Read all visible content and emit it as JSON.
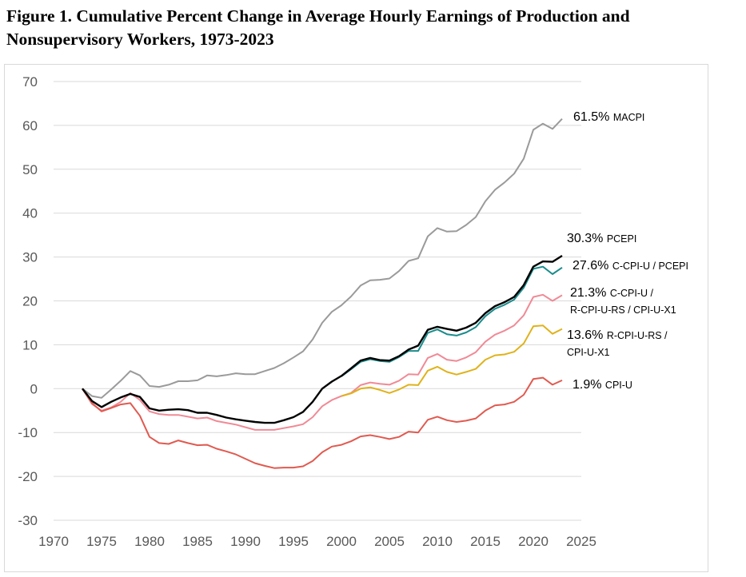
{
  "figure": {
    "title_line1": "Figure 1. Cumulative Percent Change in Average Hourly Earnings of Production and",
    "title_line2": "Nonsupervisory Workers, 1973-2023"
  },
  "chart_data": {
    "type": "line",
    "title": "Figure 1. Cumulative Percent Change in Average Hourly Earnings of Production and Nonsupervisory Workers, 1973-2023",
    "xlabel": "",
    "ylabel": "",
    "xlim": [
      1970,
      2025
    ],
    "ylim": [
      -30,
      70
    ],
    "xticks": [
      1970,
      1975,
      1980,
      1985,
      1990,
      1995,
      2000,
      2005,
      2010,
      2015,
      2020,
      2025
    ],
    "yticks": [
      -30,
      -20,
      -10,
      0,
      10,
      20,
      30,
      40,
      50,
      60,
      70
    ],
    "grid": "horizontal",
    "legend": "end-of-line labels at right",
    "series": [
      {
        "name": "MACPI",
        "color": "#9a9a9a",
        "x": [
          1973,
          1974,
          1975,
          1976,
          1977,
          1978,
          1979,
          1980,
          1981,
          1982,
          1983,
          1984,
          1985,
          1986,
          1987,
          1988,
          1989,
          1990,
          1991,
          1992,
          1993,
          1994,
          1995,
          1996,
          1997,
          1998,
          1999,
          2000,
          2001,
          2002,
          2003,
          2004,
          2005,
          2006,
          2007,
          2008,
          2009,
          2010,
          2011,
          2012,
          2013,
          2014,
          2015,
          2016,
          2017,
          2018,
          2019,
          2020,
          2021,
          2022,
          2023
        ],
        "values": [
          0,
          -1.7,
          -2.1,
          -0.2,
          1.8,
          4,
          3,
          0.6,
          0.4,
          0.9,
          1.7,
          1.7,
          1.9,
          3,
          2.8,
          3.1,
          3.5,
          3.3,
          3.3,
          4,
          4.7,
          5.8,
          7.1,
          8.5,
          11.2,
          15,
          17.5,
          19,
          21,
          23.5,
          24.7,
          24.8,
          25.1,
          26.8,
          29.1,
          29.7,
          34.7,
          36.6,
          35.8,
          35.9,
          37.3,
          39.1,
          42.7,
          45.3,
          47,
          49,
          52.4,
          59,
          60.4,
          59.2,
          61.5
        ],
        "end_value": "61.5%",
        "end_name": "MACPI"
      },
      {
        "name": "PCEPI",
        "color": "#000000",
        "x": [
          1973,
          1974,
          1975,
          1976,
          1977,
          1978,
          1979,
          1980,
          1981,
          1982,
          1983,
          1984,
          1985,
          1986,
          1987,
          1988,
          1989,
          1990,
          1991,
          1992,
          1993,
          1994,
          1995,
          1996,
          1997,
          1998,
          1999,
          2000,
          2001,
          2002,
          2003,
          2004,
          2005,
          2006,
          2007,
          2008,
          2009,
          2010,
          2011,
          2012,
          2013,
          2014,
          2015,
          2016,
          2017,
          2018,
          2019,
          2020,
          2021,
          2022,
          2023
        ],
        "values": [
          0,
          -2.8,
          -4.2,
          -3,
          -2,
          -1.2,
          -1.9,
          -4.5,
          -5,
          -4.8,
          -4.7,
          -4.9,
          -5.5,
          -5.5,
          -6,
          -6.6,
          -7,
          -7.3,
          -7.6,
          -7.8,
          -7.8,
          -7.2,
          -6.5,
          -5.3,
          -3,
          0,
          1.6,
          2.9,
          4.6,
          6.4,
          7,
          6.5,
          6.4,
          7.4,
          8.9,
          9.8,
          13.4,
          14.1,
          13.6,
          13.2,
          13.9,
          15,
          17.2,
          18.8,
          19.7,
          20.9,
          23.6,
          27.8,
          29,
          28.9,
          30.3
        ],
        "end_value": "30.3%",
        "end_name": "PCEPI"
      },
      {
        "name": "C-CPI-U / PCEPI",
        "color": "#1a8c8c",
        "x": [
          2000,
          2001,
          2002,
          2003,
          2004,
          2005,
          2006,
          2007,
          2008,
          2009,
          2010,
          2011,
          2012,
          2013,
          2014,
          2015,
          2016,
          2017,
          2018,
          2019,
          2020,
          2021,
          2022,
          2023
        ],
        "values": [
          2.8,
          4.4,
          6.1,
          6.7,
          6.3,
          6.1,
          7.2,
          8.6,
          8.6,
          12.7,
          13.5,
          12.4,
          12.1,
          12.8,
          14,
          16.5,
          18.2,
          19.1,
          20.3,
          23,
          27.3,
          27.8,
          26.1,
          27.6
        ],
        "end_value": "27.6%",
        "end_name": "C-CPI-U / PCEPI"
      },
      {
        "name": "C-CPI-U / R-CPI-U-RS / CPI-U-X1",
        "color": "#f08a96",
        "x": [
          1973,
          1974,
          1975,
          1976,
          1977,
          1978,
          1979,
          1980,
          1981,
          1982,
          1983,
          1984,
          1985,
          1986,
          1987,
          1988,
          1989,
          1990,
          1991,
          1992,
          1993,
          1994,
          1995,
          1996,
          1997,
          1998,
          1999,
          2000,
          2001,
          2002,
          2003,
          2004,
          2005,
          2006,
          2007,
          2008,
          2009,
          2010,
          2011,
          2012,
          2013,
          2014,
          2015,
          2016,
          2017,
          2018,
          2019,
          2020,
          2021,
          2022,
          2023
        ],
        "values": [
          0,
          -3.5,
          -5,
          -4.3,
          -3,
          -1,
          -2.6,
          -5.2,
          -5.8,
          -6,
          -6,
          -6.4,
          -6.8,
          -6.6,
          -7.4,
          -7.8,
          -8.2,
          -8.8,
          -9.4,
          -9.4,
          -9.4,
          -9,
          -8.6,
          -8.1,
          -6.5,
          -4,
          -2.6,
          -1.7,
          -1,
          0.8,
          1.4,
          1.1,
          0.9,
          1.8,
          3.3,
          3.2,
          7,
          7.9,
          6.6,
          6.3,
          7.1,
          8.3,
          10.7,
          12.3,
          13.2,
          14.4,
          16.7,
          20.9,
          21.4,
          20,
          21.3
        ],
        "end_value": "21.3%",
        "end_name_line1": "C-CPI-U /",
        "end_name_line2": "R-CPI-U-RS / CPI-U-X1"
      },
      {
        "name": "R-CPI-U-RS / CPI-U-X1",
        "color": "#e0b21a",
        "x": [
          2000,
          2001,
          2002,
          2003,
          2004,
          2005,
          2006,
          2007,
          2008,
          2009,
          2010,
          2011,
          2012,
          2013,
          2014,
          2015,
          2016,
          2017,
          2018,
          2019,
          2020,
          2021,
          2022,
          2023
        ],
        "values": [
          -1.7,
          -1.1,
          0,
          0.3,
          -0.3,
          -1,
          -0.2,
          0.9,
          0.8,
          4.1,
          5,
          3.8,
          3.2,
          3.8,
          4.5,
          6.6,
          7.6,
          7.8,
          8.4,
          10.3,
          14.2,
          14.4,
          12.5,
          13.6
        ],
        "end_value": "13.6%",
        "end_name_line1": "R-CPI-U-RS /",
        "end_name_line2": "CPI-U-X1"
      },
      {
        "name": "CPI-U",
        "color": "#e05a50",
        "x": [
          1973,
          1974,
          1975,
          1976,
          1977,
          1978,
          1979,
          1980,
          1981,
          1982,
          1983,
          1984,
          1985,
          1986,
          1987,
          1988,
          1989,
          1990,
          1991,
          1992,
          1993,
          1994,
          1995,
          1996,
          1997,
          1998,
          1999,
          2000,
          2001,
          2002,
          2003,
          2004,
          2005,
          2006,
          2007,
          2008,
          2009,
          2010,
          2011,
          2012,
          2013,
          2014,
          2015,
          2016,
          2017,
          2018,
          2019,
          2020,
          2021,
          2022,
          2023
        ],
        "values": [
          0,
          -3.3,
          -5.2,
          -4.4,
          -3.6,
          -3.3,
          -6.2,
          -11,
          -12.4,
          -12.6,
          -11.8,
          -12.4,
          -12.9,
          -12.8,
          -13.7,
          -14.3,
          -15,
          -16,
          -17,
          -17.6,
          -18.1,
          -18,
          -18,
          -17.7,
          -16.5,
          -14.5,
          -13.2,
          -12.8,
          -12,
          -10.9,
          -10.6,
          -11,
          -11.5,
          -11,
          -9.8,
          -10,
          -7.1,
          -6.4,
          -7.2,
          -7.6,
          -7.3,
          -6.8,
          -5,
          -3.8,
          -3.6,
          -3,
          -1.4,
          2.2,
          2.5,
          0.9,
          1.9
        ],
        "end_value": "1.9%",
        "end_name": "CPI-U"
      }
    ]
  }
}
